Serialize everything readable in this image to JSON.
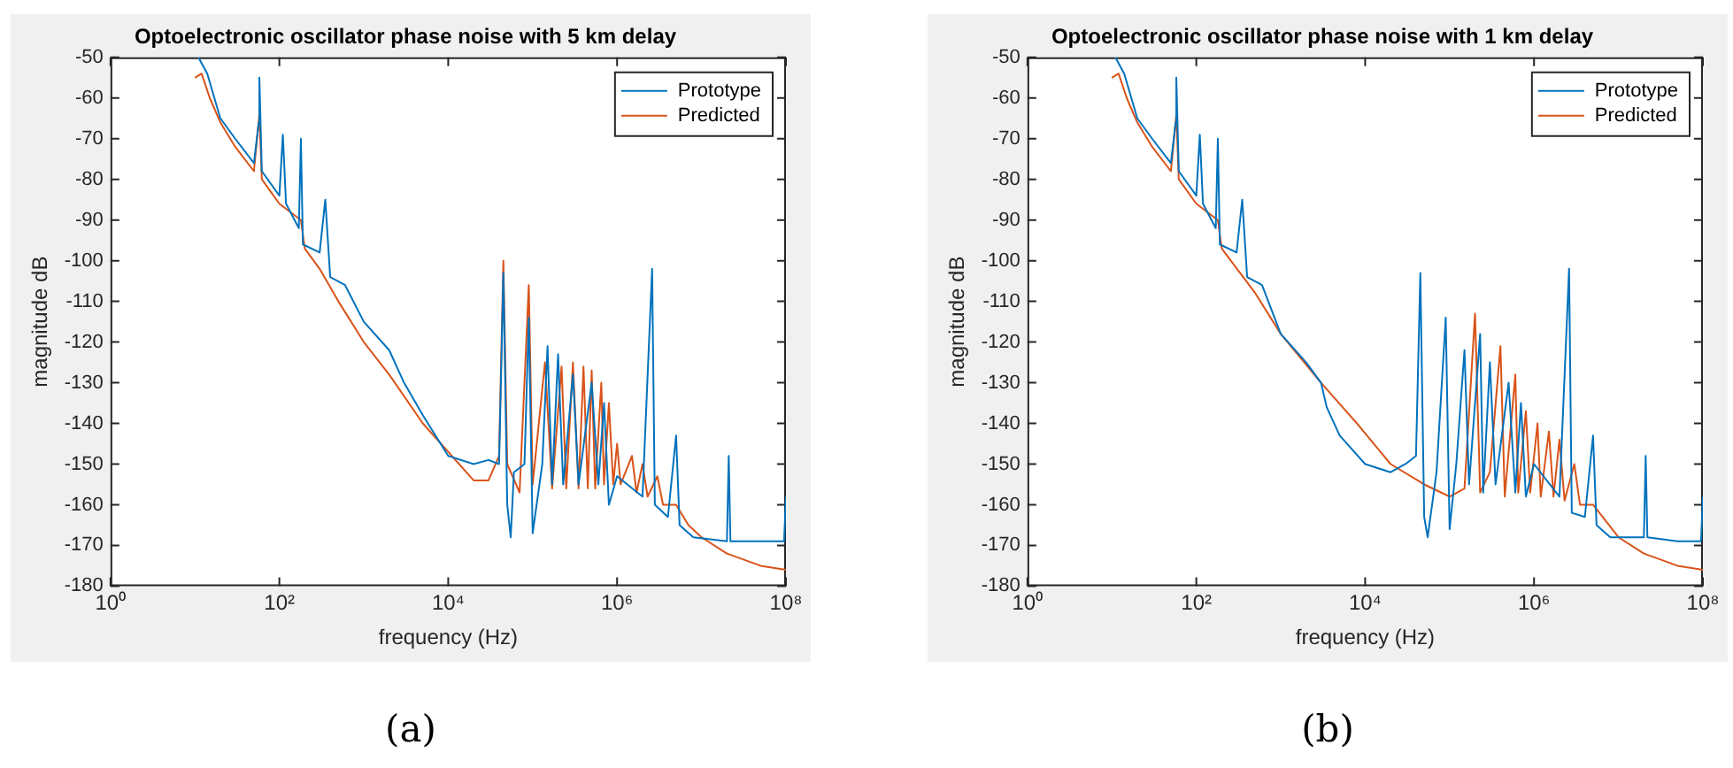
{
  "chart_data": [
    {
      "type": "line",
      "title": "Optoelectronic oscillator phase noise with 5 km delay",
      "xlabel": "frequency (Hz)",
      "ylabel": "magnitude dB",
      "log": "x",
      "legend": "top right",
      "marker": "none",
      "annotations": [
        "(a)"
      ],
      "xlim": [
        1,
        100000000
      ],
      "xticks": [
        {
          "value": 1,
          "label": "10⁰"
        },
        {
          "value": 100,
          "label": "10²"
        },
        {
          "value": 10000,
          "label": "10⁴"
        },
        {
          "value": 1000000,
          "label": "10⁶"
        },
        {
          "value": 100000000,
          "label": "10⁸"
        }
      ],
      "ylim": [
        -180,
        -50
      ],
      "yticks": [
        -180,
        -170,
        -160,
        -150,
        -140,
        -130,
        -120,
        -110,
        -100,
        -90,
        -80,
        -70,
        -60,
        -50
      ],
      "series": [
        {
          "name": "Prototype",
          "color": "#0072bd",
          "x": [
            11,
            14,
            20,
            30,
            50,
            57,
            58,
            62,
            100,
            110,
            120,
            170,
            180,
            190,
            300,
            350,
            400,
            600,
            1000,
            2000,
            3000,
            5000,
            10000,
            20000,
            30000,
            40000,
            45000,
            50000,
            55000,
            60000,
            80000,
            90000,
            100000,
            130000,
            150000,
            170000,
            200000,
            230000,
            300000,
            350000,
            500000,
            600000,
            700000,
            800000,
            1000000,
            2000000,
            2600000,
            2800000,
            4000000,
            5000000,
            5500000,
            8000000,
            20000000,
            21000000,
            22000000,
            50000000,
            95000000,
            100000000
          ],
          "values": [
            -50,
            -54,
            -65,
            -70,
            -76,
            -66,
            -55,
            -78,
            -84,
            -69,
            -86,
            -92,
            -70,
            -96,
            -98,
            -85,
            -104,
            -106,
            -115,
            -122,
            -130,
            -138,
            -148,
            -150,
            -149,
            -150,
            -103,
            -160,
            -168,
            -152,
            -150,
            -114,
            -167,
            -150,
            -121,
            -155,
            -123,
            -155,
            -128,
            -155,
            -130,
            -155,
            -135,
            -160,
            -153,
            -158,
            -102,
            -160,
            -163,
            -143,
            -165,
            -168,
            -169,
            -148,
            -169,
            -169,
            -169,
            -158
          ]
        },
        {
          "name": "Predicted",
          "color": "#d95319",
          "x": [
            10,
            12,
            15,
            20,
            30,
            50,
            58,
            62,
            100,
            180,
            200,
            300,
            500,
            1000,
            2000,
            5000,
            10000,
            20000,
            30000,
            40000,
            45000,
            50000,
            70000,
            90000,
            100000,
            140000,
            170000,
            220000,
            250000,
            300000,
            350000,
            400000,
            450000,
            500000,
            550000,
            650000,
            700000,
            800000,
            900000,
            1000000,
            1100000,
            1500000,
            1700000,
            2000000,
            2300000,
            3000000,
            3500000,
            5000000,
            7000000,
            10000000,
            20000000,
            50000000,
            100000000
          ],
          "values": [
            -55,
            -54,
            -60,
            -66,
            -72,
            -78,
            -64,
            -80,
            -86,
            -90,
            -97,
            -102,
            -110,
            -120,
            -128,
            -140,
            -147,
            -154,
            -154,
            -148,
            -100,
            -150,
            -157,
            -106,
            -155,
            -125,
            -156,
            -126,
            -156,
            -125,
            -156,
            -126,
            -156,
            -127,
            -156,
            -130,
            -155,
            -135,
            -155,
            -145,
            -155,
            -148,
            -157,
            -150,
            -158,
            -153,
            -160,
            -160,
            -165,
            -168,
            -172,
            -175,
            -176
          ]
        }
      ]
    },
    {
      "type": "line",
      "title": "Optoelectronic oscillator phase noise with 1 km delay",
      "xlabel": "frequency (Hz)",
      "ylabel": "magnitude dB",
      "log": "x",
      "legend": "top right",
      "marker": "none",
      "annotations": [
        "(b)"
      ],
      "xlim": [
        1,
        100000000
      ],
      "xticks": [
        {
          "value": 1,
          "label": "10⁰"
        },
        {
          "value": 100,
          "label": "10²"
        },
        {
          "value": 10000,
          "label": "10⁴"
        },
        {
          "value": 1000000,
          "label": "10⁶"
        },
        {
          "value": 100000000,
          "label": "10⁸"
        }
      ],
      "ylim": [
        -180,
        -50
      ],
      "yticks": [
        -180,
        -170,
        -160,
        -150,
        -140,
        -130,
        -120,
        -110,
        -100,
        -90,
        -80,
        -70,
        -60,
        -50
      ],
      "series": [
        {
          "name": "Prototype",
          "color": "#0072bd",
          "x": [
            11,
            14,
            20,
            30,
            50,
            57,
            58,
            62,
            100,
            110,
            120,
            170,
            180,
            190,
            300,
            350,
            400,
            600,
            1000,
            2000,
            3000,
            3500,
            5000,
            10000,
            20000,
            30000,
            40000,
            45000,
            50000,
            55000,
            70000,
            90000,
            100000,
            120000,
            150000,
            170000,
            230000,
            250000,
            300000,
            350000,
            500000,
            600000,
            700000,
            800000,
            1000000,
            2000000,
            2600000,
            2800000,
            4000000,
            5000000,
            5500000,
            8000000,
            20000000,
            21000000,
            22000000,
            50000000,
            95000000,
            100000000
          ],
          "values": [
            -50,
            -54,
            -65,
            -70,
            -76,
            -66,
            -55,
            -78,
            -84,
            -69,
            -86,
            -92,
            -70,
            -96,
            -98,
            -85,
            -104,
            -106,
            -118,
            -125,
            -130,
            -136,
            -143,
            -150,
            -152,
            -150,
            -148,
            -103,
            -163,
            -168,
            -152,
            -114,
            -166,
            -150,
            -122,
            -155,
            -118,
            -157,
            -125,
            -155,
            -130,
            -157,
            -135,
            -158,
            -150,
            -158,
            -102,
            -162,
            -163,
            -143,
            -165,
            -168,
            -168,
            -148,
            -168,
            -169,
            -169,
            -158
          ]
        },
        {
          "name": "Predicted",
          "color": "#d95319",
          "x": [
            10,
            12,
            15,
            20,
            30,
            50,
            58,
            62,
            100,
            180,
            200,
            500,
            1000,
            3000,
            8000,
            20000,
            50000,
            100000,
            150000,
            200000,
            230000,
            300000,
            400000,
            450000,
            600000,
            650000,
            800000,
            900000,
            1100000,
            1200000,
            1500000,
            1700000,
            2000000,
            2300000,
            3000000,
            3500000,
            5000000,
            10000000,
            20000000,
            50000000,
            100000000
          ],
          "values": [
            -55,
            -54,
            -60,
            -66,
            -72,
            -78,
            -64,
            -80,
            -86,
            -90,
            -97,
            -108,
            -118,
            -130,
            -140,
            -150,
            -155,
            -158,
            -156,
            -113,
            -157,
            -152,
            -121,
            -158,
            -128,
            -157,
            -137,
            -157,
            -140,
            -158,
            -142,
            -158,
            -144,
            -159,
            -150,
            -160,
            -160,
            -168,
            -172,
            -175,
            -176
          ]
        }
      ]
    }
  ]
}
